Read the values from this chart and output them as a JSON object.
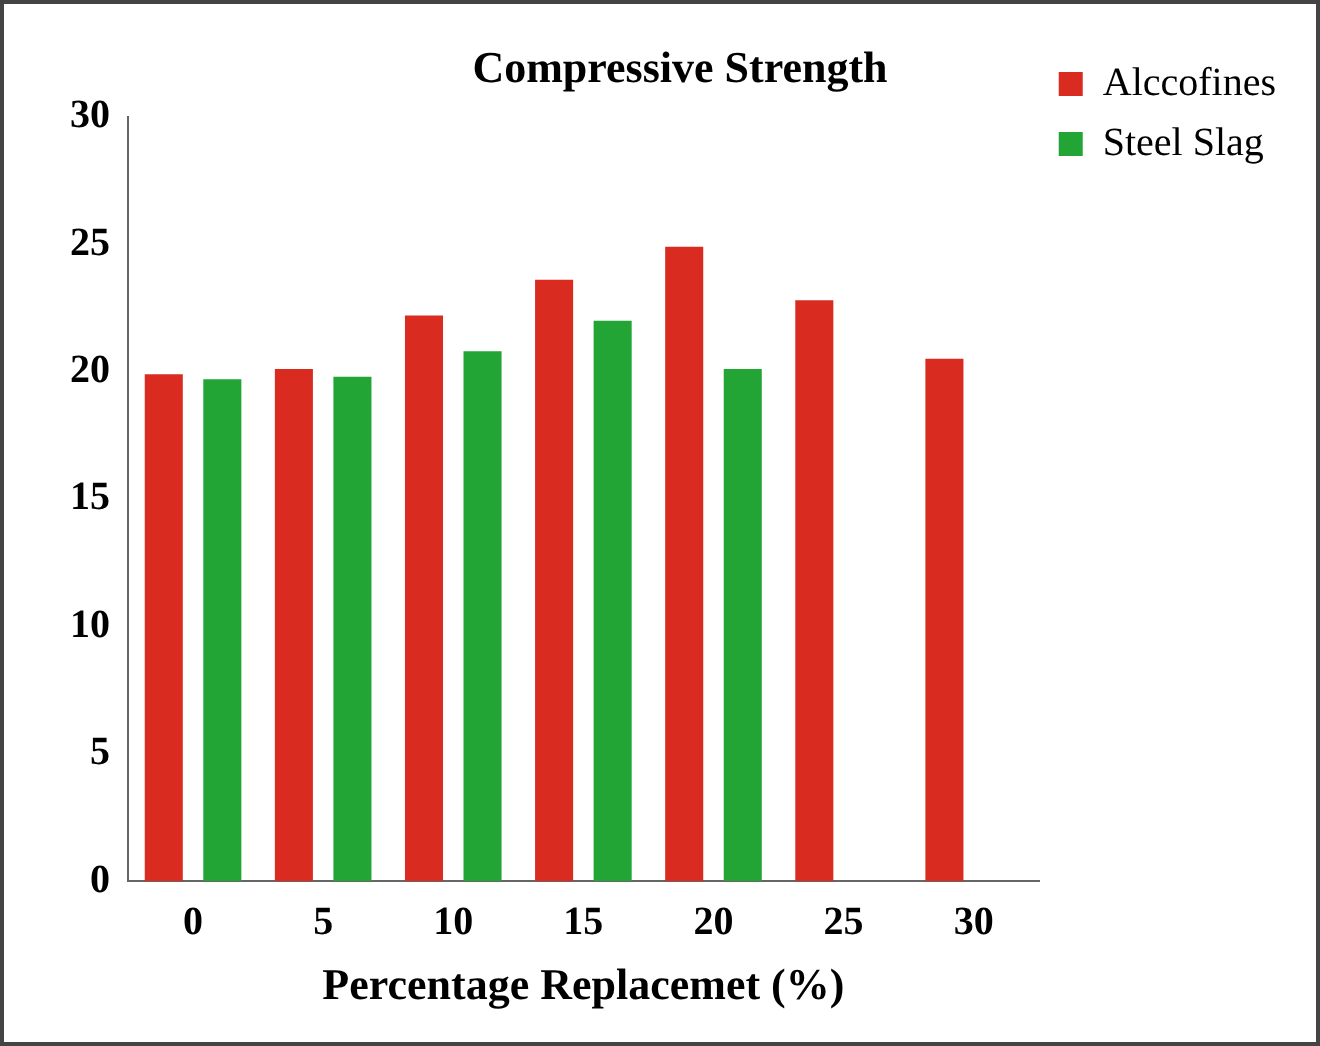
{
  "chart_data": {
    "type": "bar",
    "title": "Compressive Strength",
    "xlabel": "Percentage Replacemet (%)",
    "categories": [
      "0",
      "5",
      "10",
      "15",
      "20",
      "25",
      "30"
    ],
    "series": [
      {
        "name": "Alccofines",
        "color": "#d92b1f",
        "values": [
          19.9,
          20.1,
          22.2,
          23.6,
          24.9,
          22.8,
          20.5
        ]
      },
      {
        "name": "Steel Slag",
        "color": "#22a535",
        "values": [
          19.7,
          19.8,
          20.8,
          22.0,
          20.1,
          null,
          null
        ]
      }
    ],
    "ylim": [
      0,
      30
    ],
    "yticks": [
      0,
      5,
      10,
      15,
      20,
      25,
      30
    ],
    "grid": false,
    "legend": "top right"
  }
}
